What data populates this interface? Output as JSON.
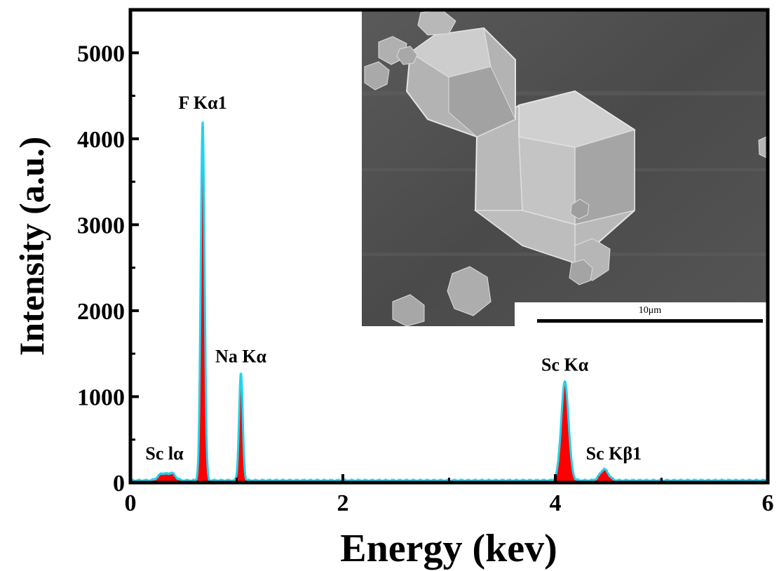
{
  "chart_data": {
    "type": "area",
    "title": "",
    "xlabel": "Energy (kev)",
    "ylabel": "Intensity (a.u.)",
    "xlim": [
      0,
      6
    ],
    "ylim": [
      0,
      5500
    ],
    "x_ticks": [
      0,
      2,
      4,
      6
    ],
    "y_ticks": [
      0,
      1000,
      2000,
      3000,
      4000,
      5000
    ],
    "grid": false,
    "fill_color": "#ff0000",
    "line_color": "#22d3ee",
    "baseline": 25,
    "peaks": [
      {
        "label": "Sc lα",
        "center": 0.3,
        "height": 80,
        "width": 0.04
      },
      {
        "label": "",
        "center": 0.39,
        "height": 80,
        "width": 0.035
      },
      {
        "label": "F Kα1",
        "center": 0.68,
        "height": 4180,
        "width": 0.018
      },
      {
        "label": "Na Kα",
        "center": 1.04,
        "height": 1250,
        "width": 0.017
      },
      {
        "label": "Sc Kα",
        "center": 4.09,
        "height": 1150,
        "width": 0.035
      },
      {
        "label": "Sc Kβ1",
        "center": 4.46,
        "height": 130,
        "width": 0.04
      }
    ],
    "peak_annotations": [
      {
        "label": "F Kα1",
        "x": 0.68,
        "y": 4350
      },
      {
        "label": "Na Kα",
        "x": 1.04,
        "y": 1400
      },
      {
        "label": "Sc Kα",
        "x": 4.09,
        "y": 1300
      },
      {
        "label": "Sc Kβ1",
        "x": 4.55,
        "y": 270
      },
      {
        "label": "Sc lα",
        "x": 0.32,
        "y": 270
      }
    ],
    "inset": {
      "type": "SEM image",
      "scale_bar_label": "10μm"
    }
  }
}
